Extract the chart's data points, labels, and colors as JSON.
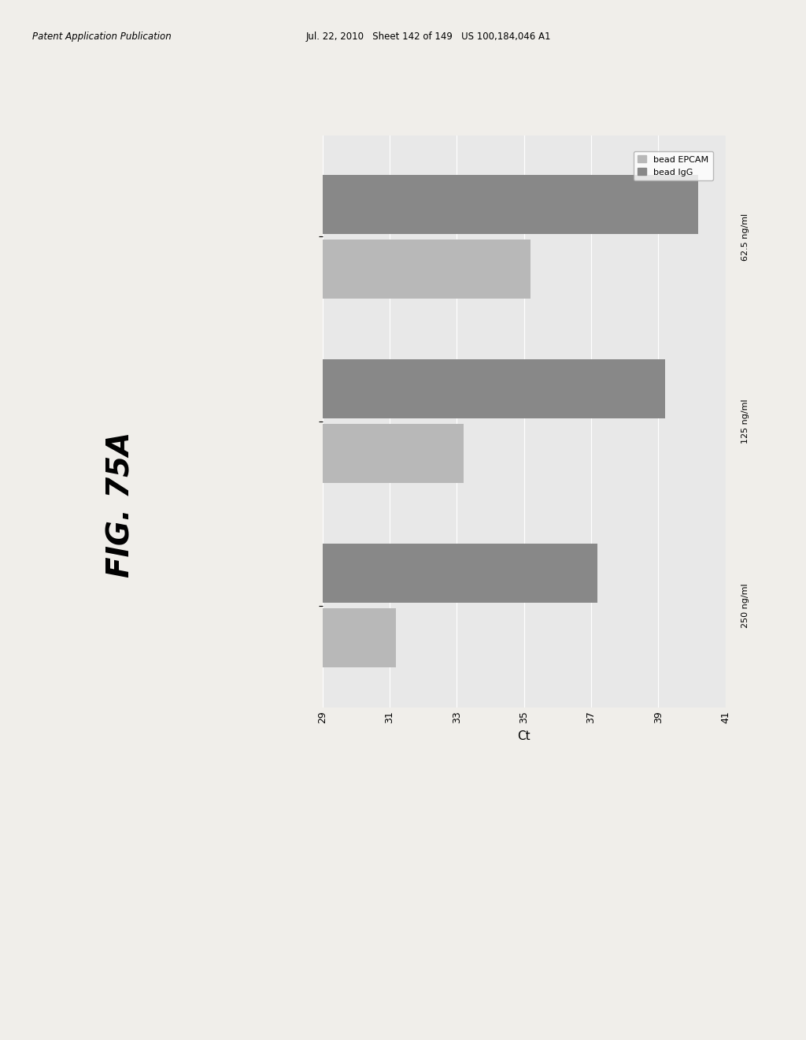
{
  "xlabel": "Ct",
  "groups": [
    "250 ng/ml",
    "125 ng/ml",
    "62.5 ng/ml"
  ],
  "series": [
    "bead EPCAM",
    "bead IgG"
  ],
  "values": {
    "bead EPCAM": [
      31.2,
      33.2,
      35.2
    ],
    "bead IgG": [
      37.2,
      39.2,
      40.2
    ]
  },
  "colors": {
    "bead EPCAM": "#b8b8b8",
    "bead IgG": "#888888"
  },
  "xlim": [
    29,
    41
  ],
  "xticks": [
    29,
    31,
    33,
    35,
    37,
    39,
    41
  ],
  "bar_height": 0.32,
  "plot_bg": "#e8e8e8",
  "page_bg": "#f0eeea",
  "grid_color": "#ffffff",
  "fig_label": "FIG. 75A",
  "header_left": "Patent Application Publication",
  "header_right": "Jul. 22, 2010   Sheet 142 of 149   US 100,184,046 A1",
  "legend_labels": [
    "bead EPCAM",
    "bead IgG"
  ]
}
